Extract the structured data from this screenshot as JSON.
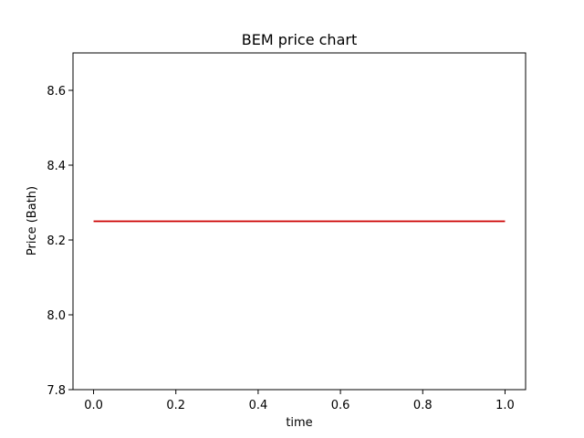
{
  "chart_data": {
    "type": "line",
    "title": "BEM price chart",
    "xlabel": "time",
    "ylabel": "Price (Bath)",
    "xlim": [
      -0.05,
      1.05
    ],
    "ylim": [
      7.8,
      8.7
    ],
    "xticks": [
      0.0,
      0.2,
      0.4,
      0.6,
      0.8,
      1.0
    ],
    "xtick_labels": [
      "0.0",
      "0.2",
      "0.4",
      "0.6",
      "0.8",
      "1.0"
    ],
    "yticks": [
      7.8,
      8.0,
      8.2,
      8.4,
      8.6
    ],
    "ytick_labels": [
      "7.8",
      "8.0",
      "8.2",
      "8.4",
      "8.6"
    ],
    "grid": false,
    "series": [
      {
        "color": "#cc0000",
        "x": [
          0.0,
          1.0
        ],
        "y": [
          8.25,
          8.25
        ]
      }
    ]
  }
}
